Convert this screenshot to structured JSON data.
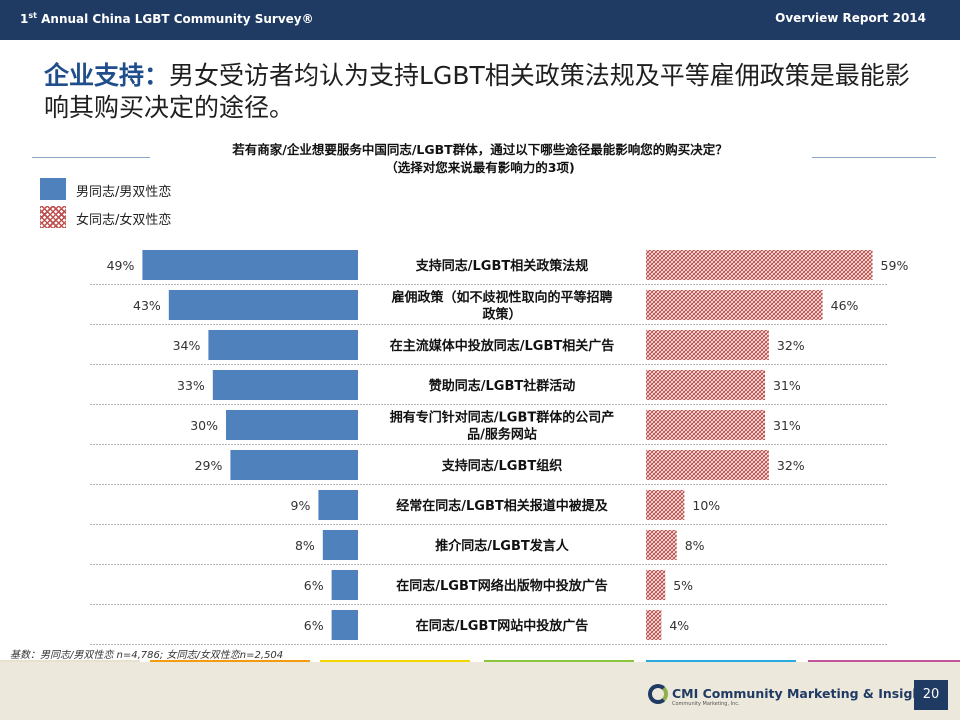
{
  "header": {
    "left_prefix": "1",
    "left_sup": "st",
    "left_rest": " Annual China LGBT Community Survey®",
    "right": "Overview Report 2014"
  },
  "title": {
    "lead": "企业支持：",
    "rest": "男女受访者均认为支持LGBT相关政策法规及平等雇佣政策是最能影响其购买决定的途径。"
  },
  "question": {
    "line1": "若有商家/企业想要服务中国同志/LGBT群体，通过以下哪些途径最能影响您的购买决定？",
    "line2": "（选择对您来说最有影响力的3项)"
  },
  "legend": {
    "male": "男同志/男双性恋",
    "female": "女同志/女双性恋"
  },
  "colors": {
    "male": "#4f81bd",
    "female_hatch": "#c0504d",
    "header_bg": "#1f3b63",
    "title_accent": "#1f4e8a"
  },
  "chart_data": {
    "type": "bar",
    "orientation": "horizontal-butterfly",
    "value_unit": "%",
    "categories": [
      [
        "支持同志/LGBT相关政策法规"
      ],
      [
        "雇佣政策（如不歧视性取向的平等招聘",
        "政策）"
      ],
      [
        "在主流媒体中投放同志/LGBT相关广告"
      ],
      [
        "赞助同志/LGBT社群活动"
      ],
      [
        "拥有专门针对同志/LGBT群体的公司产",
        "品/服务网站"
      ],
      [
        "支持同志/LGBT组织"
      ],
      [
        "经常在同志/LGBT相关报道中被提及"
      ],
      [
        "推介同志/LGBT发言人"
      ],
      [
        "在同志/LGBT网络出版物中投放广告"
      ],
      [
        "在同志/LGBT网站中投放广告"
      ]
    ],
    "series": [
      {
        "name": "男同志/男双性恋",
        "values": [
          49,
          43,
          34,
          33,
          30,
          29,
          9,
          8,
          6,
          6
        ]
      },
      {
        "name": "女同志/女双性恋",
        "values": [
          59,
          46,
          32,
          31,
          31,
          32,
          10,
          8,
          5,
          4
        ]
      }
    ]
  },
  "footnote": "基数：男同志/男双性恋 n=4,786; 女同志/女双性恋n=2,504",
  "brand": {
    "name": "CMI Community Marketing & Insights",
    "sub": "Community Marketing, Inc."
  },
  "page_number": "20"
}
